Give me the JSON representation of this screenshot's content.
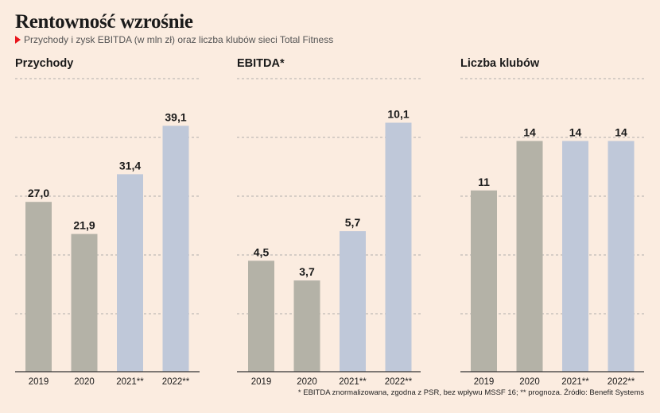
{
  "title": "Rentowność wzrośnie",
  "subtitle": "Przychody i zysk EBITDA (w mln zł) oraz liczba klubów sieci Total Fitness",
  "footnote": "* EBITDA znormalizowana, zgodna z PSR, bez wpływu MSSF 16; ** prognoza. Źródło: Benefit Systems",
  "colors": {
    "actual": "#b4b2a7",
    "forecast": "#bfc8d9",
    "grid": "#999999",
    "axis": "#333333"
  },
  "chart_data": [
    {
      "type": "bar",
      "title": "Przychody",
      "categories": [
        "2019",
        "2020",
        "2021**",
        "2022**"
      ],
      "values": [
        27.0,
        21.9,
        31.4,
        39.1
      ],
      "labels": [
        "27,0",
        "21,9",
        "31,4",
        "39,1"
      ],
      "forecast": [
        false,
        false,
        true,
        true
      ],
      "ylim": [
        0,
        49
      ],
      "grid": true
    },
    {
      "type": "bar",
      "title": "EBITDA*",
      "categories": [
        "2019",
        "2020",
        "2021**",
        "2022**"
      ],
      "values": [
        4.5,
        3.7,
        5.7,
        10.1
      ],
      "labels": [
        "4,5",
        "3,7",
        "5,7",
        "10,1"
      ],
      "forecast": [
        false,
        false,
        true,
        true
      ],
      "ylim": [
        0,
        12.5
      ],
      "grid": true
    },
    {
      "type": "bar",
      "title": "Liczba klubów",
      "categories": [
        "2019",
        "2020",
        "2021**",
        "2022**"
      ],
      "values": [
        11,
        14,
        14,
        14
      ],
      "labels": [
        "11",
        "14",
        "14",
        "14"
      ],
      "forecast": [
        false,
        false,
        true,
        true
      ],
      "ylim": [
        0,
        18.7
      ],
      "grid": true
    }
  ]
}
